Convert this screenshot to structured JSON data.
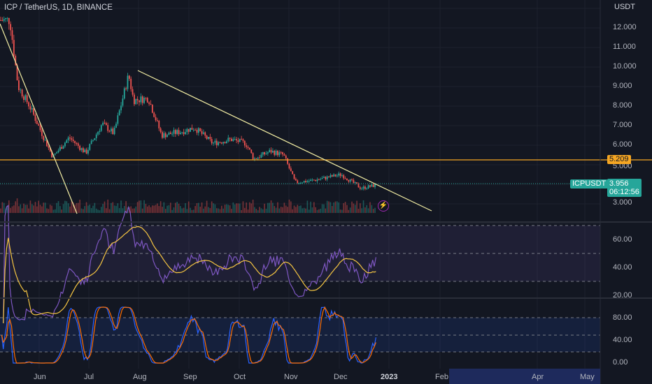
{
  "header": {
    "title": "ICP / TetherUS, 1D, BINANCE",
    "currency": "USDT"
  },
  "price_axis": {
    "labels": [
      "12.000",
      "11.000",
      "10.000",
      "9.000",
      "8.000",
      "7.000",
      "6.000",
      "5.000",
      "3.000"
    ]
  },
  "rsi_axis": {
    "labels": [
      "60.00",
      "40.00",
      "20.00"
    ]
  },
  "stoch_axis": {
    "labels": [
      "80.00",
      "40.00",
      "0.00"
    ]
  },
  "time_axis": {
    "labels": [
      "Jun",
      "Jul",
      "Aug",
      "Sep",
      "Oct",
      "Nov",
      "Dec",
      "2023",
      "Feb",
      "Apr",
      "May"
    ]
  },
  "tags": {
    "horizontal_level": "5.209",
    "symbol": "ICPUSDT",
    "last_price": "3.956",
    "countdown": "06:12:56"
  },
  "colors": {
    "background": "#131722",
    "up_candle": "#26a69a",
    "down_candle": "#ef5350",
    "level_line": "#f5a623",
    "trendline": "#f3eea4",
    "rsi_line": "#7e57c2",
    "rsi_ma": "#f5c542",
    "stoch_k": "#2962ff",
    "stoch_d": "#ff6d00"
  },
  "icons": {
    "alert": "lightning-icon"
  },
  "chart_data": {
    "type": "candlestick",
    "symbol": "ICP / TetherUS",
    "interval": "1D",
    "exchange": "BINANCE",
    "close_path": [
      {
        "x": "2022-05-20",
        "y": 12.4
      },
      {
        "x": "2022-05-25",
        "y": 9.0
      },
      {
        "x": "2022-06-01",
        "y": 8.0
      },
      {
        "x": "2022-06-10",
        "y": 6.3
      },
      {
        "x": "2022-06-15",
        "y": 5.4
      },
      {
        "x": "2022-06-25",
        "y": 6.4
      },
      {
        "x": "2022-07-05",
        "y": 5.6
      },
      {
        "x": "2022-07-15",
        "y": 7.1
      },
      {
        "x": "2022-07-22",
        "y": 6.6
      },
      {
        "x": "2022-07-31",
        "y": 9.6
      },
      {
        "x": "2022-08-03",
        "y": 8.3
      },
      {
        "x": "2022-08-12",
        "y": 8.4
      },
      {
        "x": "2022-08-20",
        "y": 6.5
      },
      {
        "x": "2022-09-01",
        "y": 6.7
      },
      {
        "x": "2022-09-09",
        "y": 6.9
      },
      {
        "x": "2022-09-20",
        "y": 6.1
      },
      {
        "x": "2022-10-01",
        "y": 6.3
      },
      {
        "x": "2022-10-10",
        "y": 6.1
      },
      {
        "x": "2022-10-15",
        "y": 5.3
      },
      {
        "x": "2022-10-25",
        "y": 5.7
      },
      {
        "x": "2022-11-02",
        "y": 5.5
      },
      {
        "x": "2022-11-09",
        "y": 4.1
      },
      {
        "x": "2022-11-20",
        "y": 4.2
      },
      {
        "x": "2022-12-01",
        "y": 4.4
      },
      {
        "x": "2022-12-07",
        "y": 4.5
      },
      {
        "x": "2022-12-19",
        "y": 3.8
      },
      {
        "x": "2022-12-28",
        "y": 3.956
      }
    ],
    "horizontal_level": 5.209,
    "last_price": 3.956,
    "ylim": [
      2.8,
      12.6
    ],
    "indicators": [
      {
        "name": "RSI",
        "ylim": [
          20,
          70
        ],
        "bands": [
          30,
          50,
          70
        ]
      },
      {
        "name": "Stoch",
        "ylim": [
          0,
          100
        ],
        "bands": [
          20,
          50,
          80
        ]
      }
    ]
  }
}
